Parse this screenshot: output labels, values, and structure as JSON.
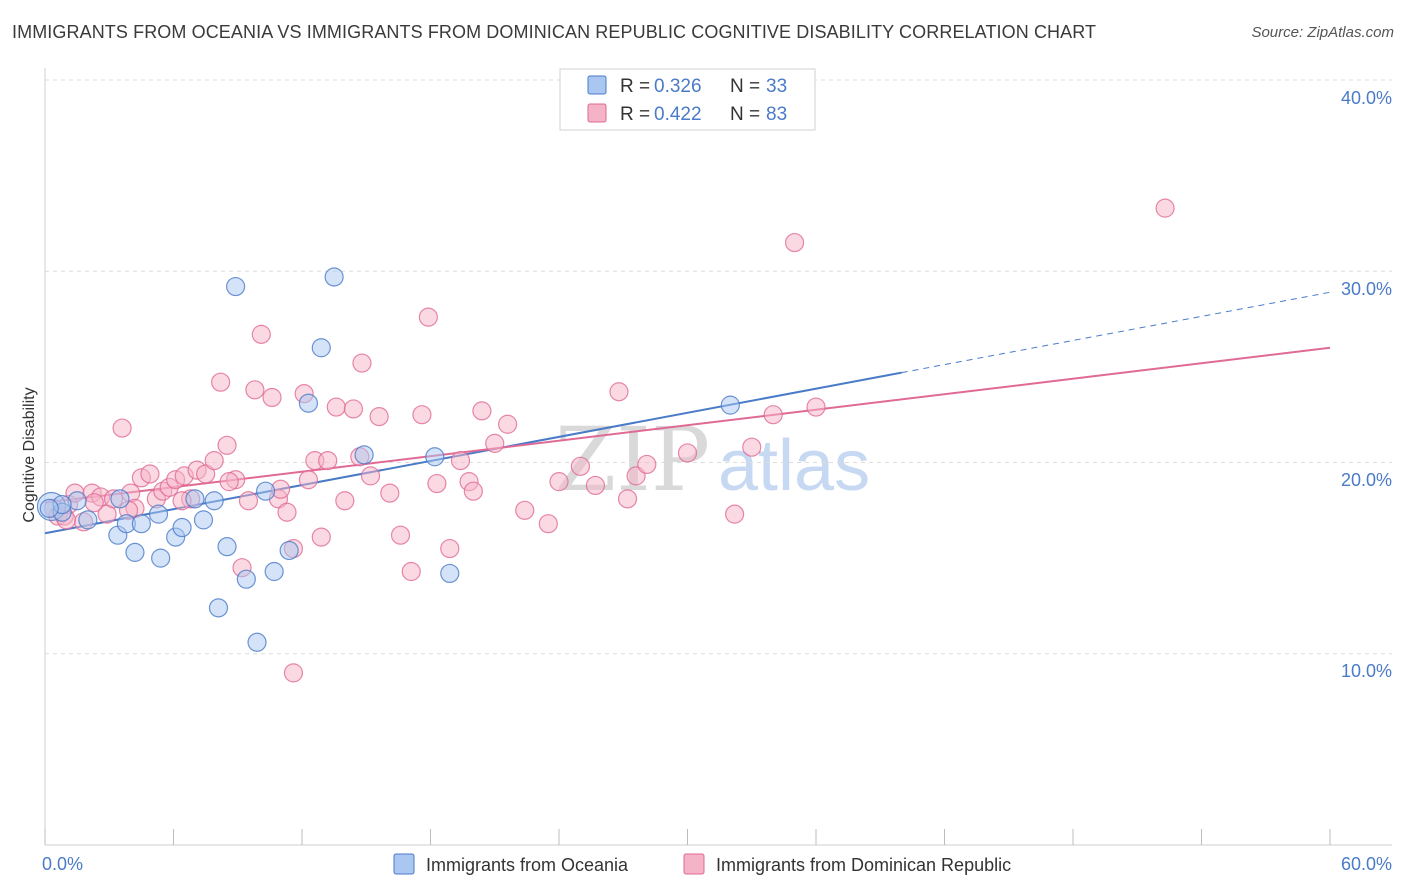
{
  "title": "IMMIGRANTS FROM OCEANIA VS IMMIGRANTS FROM DOMINICAN REPUBLIC COGNITIVE DISABILITY CORRELATION CHART",
  "source": "Source: ZipAtlas.com",
  "watermark": {
    "zip": "ZIP",
    "atlas": "atlas"
  },
  "colors": {
    "blue": "#4a7bc8",
    "blue_fill": "#a9c7f0",
    "pink": "#e06a95",
    "pink_fill": "#f5b3c8",
    "grid": "#dcdcdc"
  },
  "legend": {
    "r_label": "R =",
    "n_label": "N =",
    "rows": [
      {
        "r": "0.326",
        "n": "33"
      },
      {
        "r": "0.422",
        "n": "83"
      }
    ]
  },
  "chart_data": {
    "type": "scatter",
    "title": "IMMIGRANTS FROM OCEANIA VS IMMIGRANTS FROM DOMINICAN REPUBLIC COGNITIVE DISABILITY CORRELATION CHART",
    "xlabel": "",
    "ylabel": "Cognitive Disability",
    "xlim": [
      0,
      60
    ],
    "ylim": [
      0,
      40
    ],
    "x_tick_labels": [
      "0.0%",
      "60.0%"
    ],
    "y_ticks": [
      10,
      20,
      30,
      40
    ],
    "y_tick_labels": [
      "10.0%",
      "20.0%",
      "30.0%",
      "40.0%"
    ],
    "series": [
      {
        "name": "Immigrants from Oceania",
        "color": "#4a7bc8",
        "r": 0.326,
        "n": 33,
        "trend": {
          "x0": 0,
          "y0": 16.3,
          "x1": 40,
          "y1": 24.7,
          "dash_to_x": 60,
          "dash_to_y": 28.9
        },
        "points": [
          [
            0.3,
            17.7
          ],
          [
            0.8,
            17.4
          ],
          [
            1.5,
            18.0
          ],
          [
            2.0,
            17.0
          ],
          [
            3.5,
            18.1
          ],
          [
            3.4,
            16.2
          ],
          [
            3.8,
            16.8
          ],
          [
            4.2,
            15.3
          ],
          [
            4.5,
            16.8
          ],
          [
            5.3,
            17.3
          ],
          [
            5.4,
            15.0
          ],
          [
            6.1,
            16.1
          ],
          [
            6.4,
            16.6
          ],
          [
            7.0,
            18.1
          ],
          [
            7.4,
            17.0
          ],
          [
            7.9,
            18.0
          ],
          [
            8.1,
            12.4
          ],
          [
            8.5,
            15.6
          ],
          [
            8.9,
            29.2
          ],
          [
            9.4,
            13.9
          ],
          [
            9.9,
            10.6
          ],
          [
            10.3,
            18.5
          ],
          [
            10.7,
            14.3
          ],
          [
            11.4,
            15.4
          ],
          [
            12.3,
            23.1
          ],
          [
            12.9,
            26.0
          ],
          [
            13.5,
            29.7
          ],
          [
            14.9,
            20.4
          ],
          [
            18.2,
            20.3
          ],
          [
            18.9,
            14.2
          ],
          [
            32.0,
            23.0
          ],
          [
            0.8,
            17.8
          ],
          [
            0.2,
            17.6
          ]
        ]
      },
      {
        "name": "Immigrants from Dominican Republic",
        "color": "#e06a95",
        "r": 0.422,
        "n": 83,
        "trend": {
          "x0": 0,
          "y0": 17.9,
          "x1": 60,
          "y1": 26.0
        },
        "points": [
          [
            0.4,
            17.6
          ],
          [
            0.6,
            17.2
          ],
          [
            0.9,
            17.2
          ],
          [
            1.1,
            17.8
          ],
          [
            1.4,
            18.4
          ],
          [
            1.8,
            16.9
          ],
          [
            2.2,
            18.4
          ],
          [
            2.6,
            18.2
          ],
          [
            2.9,
            17.3
          ],
          [
            3.2,
            18.1
          ],
          [
            3.6,
            21.8
          ],
          [
            4.0,
            18.4
          ],
          [
            4.2,
            17.6
          ],
          [
            4.5,
            19.2
          ],
          [
            4.9,
            19.4
          ],
          [
            5.2,
            18.1
          ],
          [
            5.5,
            18.5
          ],
          [
            5.8,
            18.7
          ],
          [
            6.1,
            19.1
          ],
          [
            6.5,
            19.3
          ],
          [
            6.8,
            18.1
          ],
          [
            7.1,
            19.6
          ],
          [
            7.5,
            19.4
          ],
          [
            7.9,
            20.1
          ],
          [
            8.2,
            24.2
          ],
          [
            8.5,
            20.9
          ],
          [
            8.9,
            19.1
          ],
          [
            9.2,
            14.5
          ],
          [
            9.5,
            18.0
          ],
          [
            9.8,
            23.8
          ],
          [
            10.1,
            26.7
          ],
          [
            10.6,
            23.4
          ],
          [
            10.9,
            18.1
          ],
          [
            11.3,
            17.4
          ],
          [
            11.6,
            15.5
          ],
          [
            11.6,
            9.0
          ],
          [
            12.1,
            23.6
          ],
          [
            12.3,
            19.1
          ],
          [
            12.6,
            20.1
          ],
          [
            12.9,
            16.1
          ],
          [
            13.2,
            20.1
          ],
          [
            13.6,
            22.9
          ],
          [
            14.0,
            18.0
          ],
          [
            14.4,
            22.8
          ],
          [
            14.8,
            25.2
          ],
          [
            15.2,
            19.3
          ],
          [
            15.6,
            22.4
          ],
          [
            16.1,
            18.4
          ],
          [
            16.6,
            16.2
          ],
          [
            17.1,
            14.3
          ],
          [
            17.6,
            22.5
          ],
          [
            17.9,
            27.6
          ],
          [
            18.3,
            18.9
          ],
          [
            18.9,
            15.5
          ],
          [
            19.4,
            20.1
          ],
          [
            19.8,
            19.0
          ],
          [
            20.4,
            22.7
          ],
          [
            21.0,
            21.0
          ],
          [
            21.6,
            22.0
          ],
          [
            22.4,
            17.5
          ],
          [
            23.5,
            16.8
          ],
          [
            24.0,
            19.0
          ],
          [
            25.0,
            19.8
          ],
          [
            25.7,
            18.8
          ],
          [
            26.8,
            23.7
          ],
          [
            27.2,
            18.1
          ],
          [
            27.6,
            19.3
          ],
          [
            28.1,
            19.9
          ],
          [
            30.0,
            20.5
          ],
          [
            32.2,
            17.3
          ],
          [
            33.0,
            20.8
          ],
          [
            34.0,
            22.5
          ],
          [
            35.0,
            31.5
          ],
          [
            36.0,
            22.9
          ],
          [
            52.3,
            33.3
          ],
          [
            1.0,
            17.0
          ],
          [
            2.3,
            17.9
          ],
          [
            3.9,
            17.5
          ],
          [
            6.4,
            18.0
          ],
          [
            8.6,
            19.0
          ],
          [
            11.0,
            18.6
          ],
          [
            14.7,
            20.3
          ],
          [
            20.0,
            18.5
          ]
        ]
      }
    ]
  }
}
